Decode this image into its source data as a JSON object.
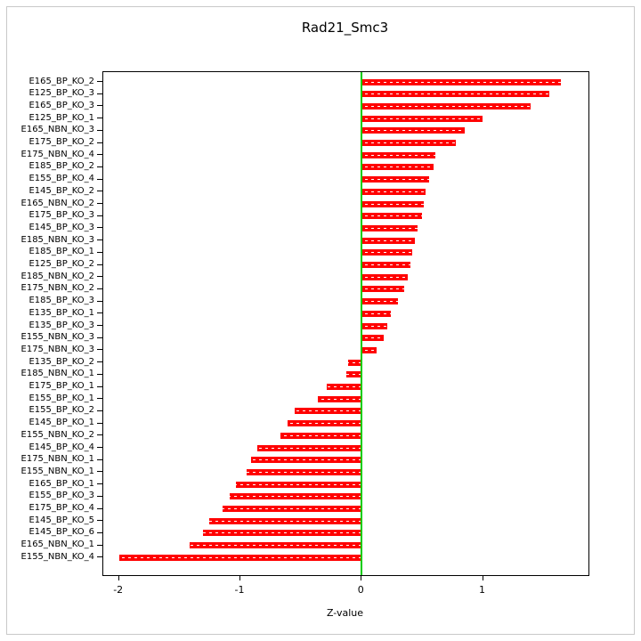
{
  "chart_data": {
    "type": "bar",
    "orientation": "horizontal",
    "title": "Rad21_Smc3",
    "xlabel": "Z-value",
    "ylabel": "",
    "xlim": [
      -2.13,
      1.87
    ],
    "x_ticks": [
      -2,
      -1,
      0,
      1
    ],
    "grid": false,
    "legend": "none",
    "bar_color": "#ff0000",
    "bar_stripe_color": "#ffffff",
    "zero_line_color": "#00cc00",
    "categories": [
      "E165_BP_KO_2",
      "E125_BP_KO_3",
      "E165_BP_KO_3",
      "E125_BP_KO_1",
      "E165_NBN_KO_3",
      "E175_BP_KO_2",
      "E175_NBN_KO_4",
      "E185_BP_KO_2",
      "E155_BP_KO_4",
      "E145_BP_KO_2",
      "E165_NBN_KO_2",
      "E175_BP_KO_3",
      "E145_BP_KO_3",
      "E185_NBN_KO_3",
      "E185_BP_KO_1",
      "E125_BP_KO_2",
      "E185_NBN_KO_2",
      "E175_NBN_KO_2",
      "E185_BP_KO_3",
      "E135_BP_KO_1",
      "E135_BP_KO_3",
      "E155_NBN_KO_3",
      "E175_NBN_KO_3",
      "E135_BP_KO_2",
      "E185_NBN_KO_1",
      "E175_BP_KO_1",
      "E155_BP_KO_1",
      "E155_BP_KO_2",
      "E145_BP_KO_1",
      "E155_NBN_KO_2",
      "E145_BP_KO_4",
      "E175_NBN_KO_1",
      "E155_NBN_KO_1",
      "E165_BP_KO_1",
      "E155_BP_KO_3",
      "E175_BP_KO_4",
      "E145_BP_KO_5",
      "E145_BP_KO_6",
      "E165_NBN_KO_1",
      "E155_NBN_KO_4"
    ],
    "values": [
      1.64,
      1.55,
      1.39,
      1.0,
      0.85,
      0.78,
      0.61,
      0.59,
      0.56,
      0.53,
      0.51,
      0.5,
      0.46,
      0.44,
      0.42,
      0.4,
      0.38,
      0.35,
      0.3,
      0.24,
      0.21,
      0.18,
      0.12,
      -0.11,
      -0.13,
      -0.29,
      -0.36,
      -0.55,
      -0.61,
      -0.67,
      -0.86,
      -0.91,
      -0.95,
      -1.04,
      -1.09,
      -1.15,
      -1.26,
      -1.31,
      -1.42,
      -2.0
    ]
  }
}
